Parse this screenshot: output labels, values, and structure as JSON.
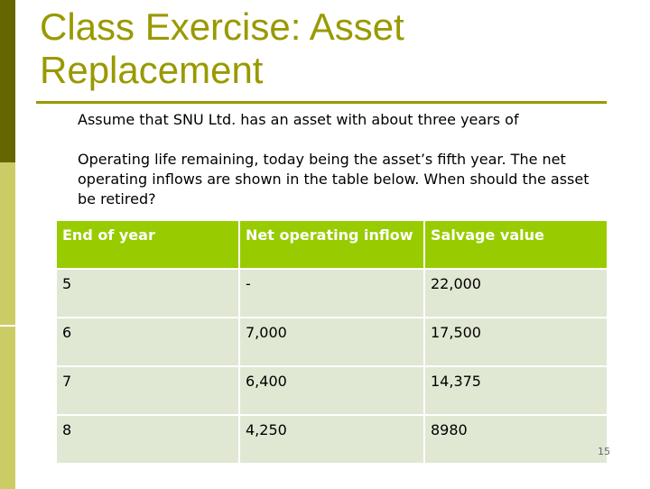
{
  "slide": {
    "title_line1": "Class Exercise: Asset",
    "title_line2": "Replacement",
    "intro_line1": "Assume that SNU Ltd. has an asset with about three years of",
    "intro_para2": "Operating life remaining, today being the asset’s fifth year. The net operating inflows are shown in the table below. When should the asset be retired?",
    "page_number": "15",
    "colors": {
      "title": "#999900",
      "header_bg": "#99cc00",
      "cell_bg": "#e0e8d3",
      "bar_dark": "#666600",
      "bar_light": "#cccc66"
    }
  },
  "table": {
    "headers": [
      "End of year",
      "Net operating inflow",
      "Salvage value"
    ],
    "rows": [
      [
        "5",
        "-",
        "22,000"
      ],
      [
        "6",
        "7,000",
        "17,500"
      ],
      [
        "7",
        "6,400",
        "14,375"
      ],
      [
        "8",
        "4,250",
        "8980"
      ]
    ]
  }
}
